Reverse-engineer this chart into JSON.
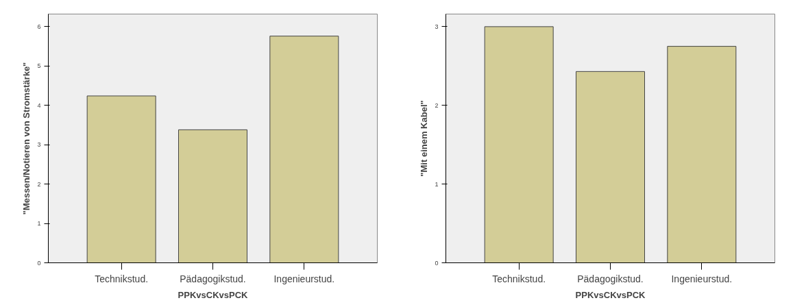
{
  "chart_data": [
    {
      "type": "bar",
      "categories": [
        "Technikstud.",
        "Pädagogikstud.",
        "Ingenieurstud."
      ],
      "values": [
        4.24,
        3.38,
        5.76
      ],
      "color": "#d3cd97",
      "xlabel": "PPKvsCKvsPCK",
      "ylabel": "\"Messen/Notieren von Stromstärke\"",
      "ylim": [
        0,
        6.32
      ],
      "yticks": [
        0,
        1,
        2,
        3,
        4,
        5,
        6
      ],
      "grid": false
    },
    {
      "type": "bar",
      "categories": [
        "Technikstud.",
        "Pädagogikstud.",
        "Ingenieurstud."
      ],
      "values": [
        3.0,
        2.43,
        2.75
      ],
      "color": "#d3cd97",
      "xlabel": "PPKvsCKvsPCK",
      "ylabel": "\"Mit einem Kabel\"",
      "ylim": [
        0,
        3.16
      ],
      "yticks": [
        0,
        1,
        2,
        3
      ],
      "grid": false
    }
  ]
}
